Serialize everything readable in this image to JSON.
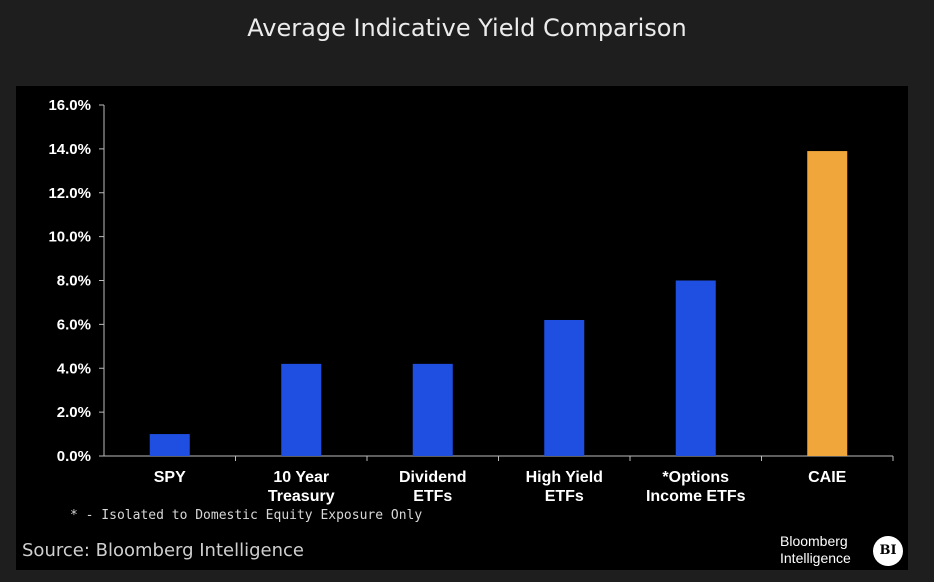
{
  "title": "Average Indicative Yield Comparison",
  "footnote": "* - Isolated to Domestic Equity Exposure Only",
  "source": "Source: Bloomberg Intelligence",
  "logo": {
    "line1": "Bloomberg",
    "line2": "Intelligence",
    "badge": "BI"
  },
  "chart_data": {
    "type": "bar",
    "categories": [
      [
        "SPY"
      ],
      [
        "10 Year",
        "Treasury"
      ],
      [
        "Dividend",
        "ETFs"
      ],
      [
        "High Yield",
        "ETFs"
      ],
      [
        "*Options",
        "Income ETFs"
      ],
      [
        "CAIE"
      ]
    ],
    "values": [
      1.0,
      4.2,
      4.2,
      6.2,
      8.0,
      13.9
    ],
    "colors": [
      "#1f4fe0",
      "#1f4fe0",
      "#1f4fe0",
      "#1f4fe0",
      "#1f4fe0",
      "#f0a63a"
    ],
    "ylim": [
      0,
      16
    ],
    "yticks": [
      "0.0%",
      "2.0%",
      "4.0%",
      "6.0%",
      "8.0%",
      "10.0%",
      "12.0%",
      "14.0%",
      "16.0%"
    ],
    "grid": false,
    "xlabel": "",
    "ylabel": ""
  }
}
